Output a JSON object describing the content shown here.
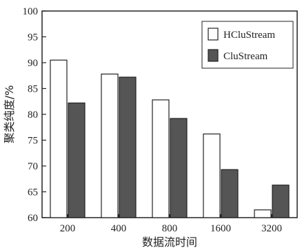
{
  "chart_data": {
    "type": "bar",
    "title": "",
    "xlabel": "数据流时间",
    "ylabel": "聚类纯度/%",
    "categories": [
      "200",
      "400",
      "800",
      "1600",
      "3200"
    ],
    "series": [
      {
        "name": "HCluStream",
        "values": [
          90.5,
          87.8,
          82.8,
          76.2,
          61.5
        ],
        "color": "#ffffff"
      },
      {
        "name": "CluStream",
        "values": [
          82.2,
          87.2,
          79.2,
          69.3,
          66.3
        ],
        "color": "#555555"
      }
    ],
    "ylim": [
      60,
      100
    ],
    "yticks": [
      60,
      65,
      70,
      75,
      80,
      85,
      90,
      95,
      100
    ],
    "grid": false,
    "legend_position": "top-right"
  }
}
